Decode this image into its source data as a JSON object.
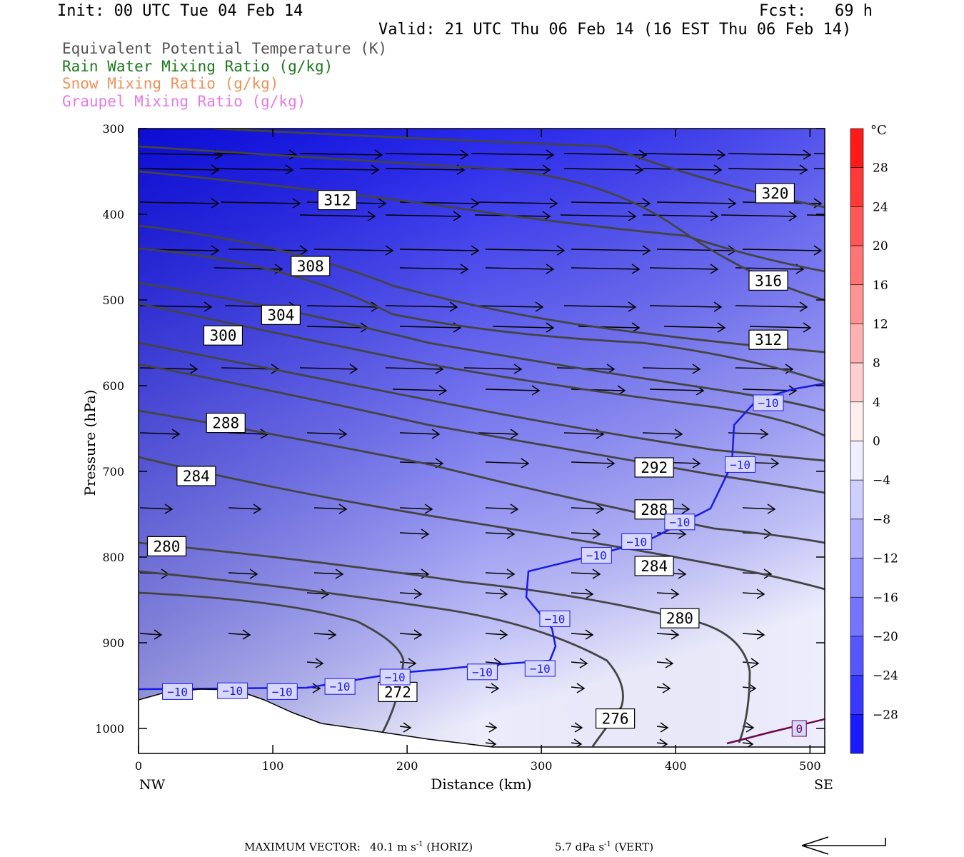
{
  "header": {
    "init": "Init: 00 UTC Tue 04 Feb 14",
    "fcst": "Fcst:   69 h",
    "valid": "Valid: 21 UTC Thu 06 Feb 14 (16 EST Thu 06 Feb 14)"
  },
  "legend": [
    {
      "label": "Equivalent Potential Temperature (K)",
      "color": "#555555"
    },
    {
      "label": "Rain Water Mixing Ratio (g/kg)",
      "color": "#1a7a1a"
    },
    {
      "label": "Snow Mixing Ratio (g/kg)",
      "color": "#f0905a"
    },
    {
      "label": "Graupel Mixing Ratio (g/kg)",
      "color": "#e878e8"
    }
  ],
  "chart_data": {
    "type": "heatmap",
    "xlabel": "Distance (km)",
    "ylabel": "Pressure (hPa)",
    "xlim": [
      0,
      511
    ],
    "ylim": [
      1030,
      300
    ],
    "x_ticks": [
      "0",
      "100",
      "200",
      "300",
      "400",
      "500"
    ],
    "y_ticks": [
      "300",
      "400",
      "500",
      "600",
      "700",
      "800",
      "900",
      "1000"
    ],
    "x_end_labels": {
      "left": "NW",
      "right": "SE"
    },
    "colorbar": {
      "unit": "°C",
      "ticks": [
        "28",
        "24",
        "20",
        "16",
        "12",
        "8",
        "4",
        "0",
        "-4",
        "-8",
        "-12",
        "-16",
        "-20",
        "-24",
        "-28"
      ],
      "range": [
        -32,
        32
      ]
    },
    "theta_e_labels": [
      {
        "text": "312",
        "x": 148,
        "p": 383
      },
      {
        "text": "308",
        "x": 128,
        "p": 460
      },
      {
        "text": "304",
        "x": 106,
        "p": 517
      },
      {
        "text": "300",
        "x": 63,
        "p": 541
      },
      {
        "text": "288",
        "x": 65,
        "p": 643
      },
      {
        "text": "284",
        "x": 43,
        "p": 705
      },
      {
        "text": "280",
        "x": 21,
        "p": 787
      },
      {
        "text": "272",
        "x": 193,
        "p": 957
      },
      {
        "text": "276",
        "x": 355,
        "p": 988
      },
      {
        "text": "280",
        "x": 403,
        "p": 871
      },
      {
        "text": "284",
        "x": 384,
        "p": 810
      },
      {
        "text": "288",
        "x": 384,
        "p": 744
      },
      {
        "text": "292",
        "x": 384,
        "p": 695
      },
      {
        "text": "312",
        "x": 469,
        "p": 546
      },
      {
        "text": "316",
        "x": 469,
        "p": 477
      },
      {
        "text": "320",
        "x": 474,
        "p": 375
      }
    ],
    "temperature_contour_labels": [
      {
        "text": "−10",
        "x": 29,
        "p": 957
      },
      {
        "text": "−10",
        "x": 70,
        "p": 956
      },
      {
        "text": "−10",
        "x": 107,
        "p": 957
      },
      {
        "text": "−10",
        "x": 150,
        "p": 951
      },
      {
        "text": "−10",
        "x": 191,
        "p": 940
      },
      {
        "text": "−10",
        "x": 256,
        "p": 934
      },
      {
        "text": "−10",
        "x": 299,
        "p": 930
      },
      {
        "text": "−10",
        "x": 310,
        "p": 872
      },
      {
        "text": "−10",
        "x": 341,
        "p": 798
      },
      {
        "text": "−10",
        "x": 371,
        "p": 782
      },
      {
        "text": "−10",
        "x": 403,
        "p": 759
      },
      {
        "text": "−10",
        "x": 448,
        "p": 692
      },
      {
        "text": "−10",
        "x": 469,
        "p": 620
      },
      {
        "text": "0",
        "x": 492,
        "p": 1000
      }
    ]
  },
  "footer": {
    "max_vector_label": "MAXIMUM VECTOR:",
    "horiz": "40.1 m s",
    "horiz_unit": "(HORIZ)",
    "vert": "5.7 dPa s",
    "vert_unit": "(VERT)",
    "exponent": "-1"
  }
}
